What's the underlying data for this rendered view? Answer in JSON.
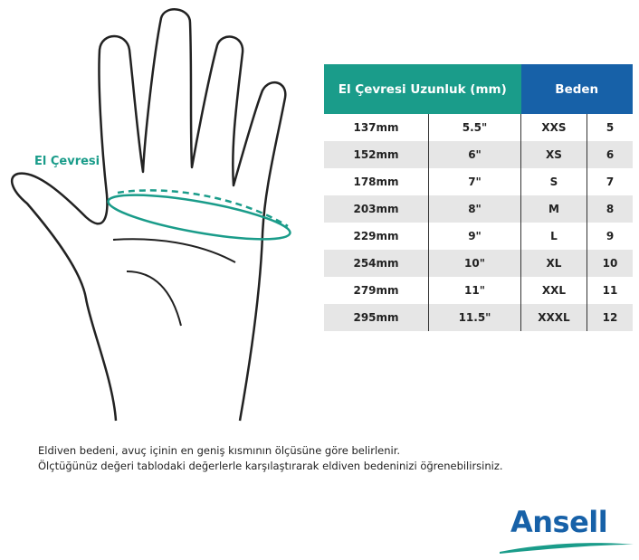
{
  "hand_label": "El Çevresi",
  "table": {
    "header_measure": "El Çevresi Uzunluk (mm)",
    "header_size": "Beden",
    "header_colors": {
      "measure": "#1a9c8a",
      "size": "#1761a8"
    },
    "rows": [
      {
        "mm": "137mm",
        "inch": "5.5\"",
        "letter": "XXS",
        "number": "5"
      },
      {
        "mm": "152mm",
        "inch": "6\"",
        "letter": "XS",
        "number": "6"
      },
      {
        "mm": "178mm",
        "inch": "7\"",
        "letter": "S",
        "number": "7"
      },
      {
        "mm": "203mm",
        "inch": "8\"",
        "letter": "M",
        "number": "8"
      },
      {
        "mm": "229mm",
        "inch": "9\"",
        "letter": "L",
        "number": "9"
      },
      {
        "mm": "254mm",
        "inch": "10\"",
        "letter": "XL",
        "number": "10"
      },
      {
        "mm": "279mm",
        "inch": "11\"",
        "letter": "XXL",
        "number": "11"
      },
      {
        "mm": "295mm",
        "inch": "11.5\"",
        "letter": "XXXL",
        "number": "12"
      }
    ]
  },
  "note": {
    "line1": "Eldiven bedeni, avuç içinin en geniş kısmının ölçüsüne göre belirlenir.",
    "line2": "Ölçtüğünüz değeri tablodaki değerlerle karşılaştırarak eldiven bedeninizi öğrenebilirsiniz."
  },
  "logo": "Ansell"
}
